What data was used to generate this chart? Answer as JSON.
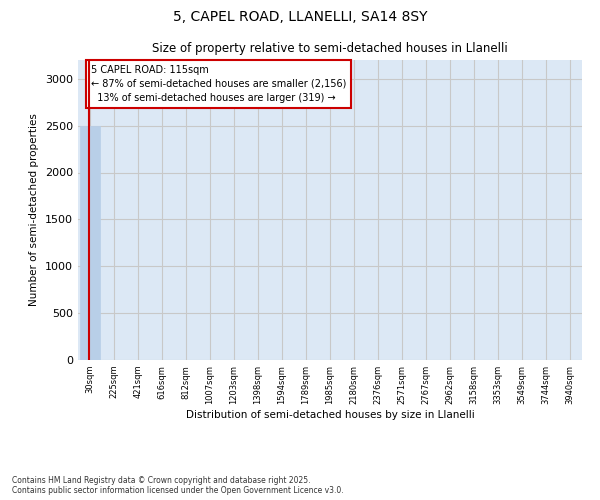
{
  "title_line1": "5, CAPEL ROAD, LLANELLI, SA14 8SY",
  "title_line2": "Size of property relative to semi-detached houses in Llanelli",
  "xlabel": "Distribution of semi-detached houses by size in Llanelli",
  "ylabel": "Number of semi-detached properties",
  "bar_categories": [
    "30sqm",
    "225sqm",
    "421sqm",
    "616sqm",
    "812sqm",
    "1007sqm",
    "1203sqm",
    "1398sqm",
    "1594sqm",
    "1789sqm",
    "1985sqm",
    "2180sqm",
    "2376sqm",
    "2571sqm",
    "2767sqm",
    "2962sqm",
    "3158sqm",
    "3353sqm",
    "3549sqm",
    "3744sqm",
    "3940sqm"
  ],
  "bar_heights": [
    2500,
    0,
    0,
    0,
    0,
    0,
    0,
    0,
    0,
    0,
    0,
    0,
    0,
    0,
    0,
    0,
    0,
    0,
    0,
    0,
    0
  ],
  "bar_color": "#b8cfe8",
  "bar_edge_color": "#b8cfe8",
  "property_size": "115sqm",
  "pct_smaller": 87,
  "count_smaller": 2156,
  "pct_larger": 13,
  "count_larger": 319,
  "annotation_box_color": "#cc0000",
  "ylim": [
    0,
    3200
  ],
  "yticks": [
    0,
    500,
    1000,
    1500,
    2000,
    2500,
    3000
  ],
  "grid_color": "#c8c8c8",
  "bg_color": "#dce8f5",
  "footnote": "Contains HM Land Registry data © Crown copyright and database right 2025.\nContains public sector information licensed under the Open Government Licence v3.0.",
  "fig_bg": "#ffffff"
}
